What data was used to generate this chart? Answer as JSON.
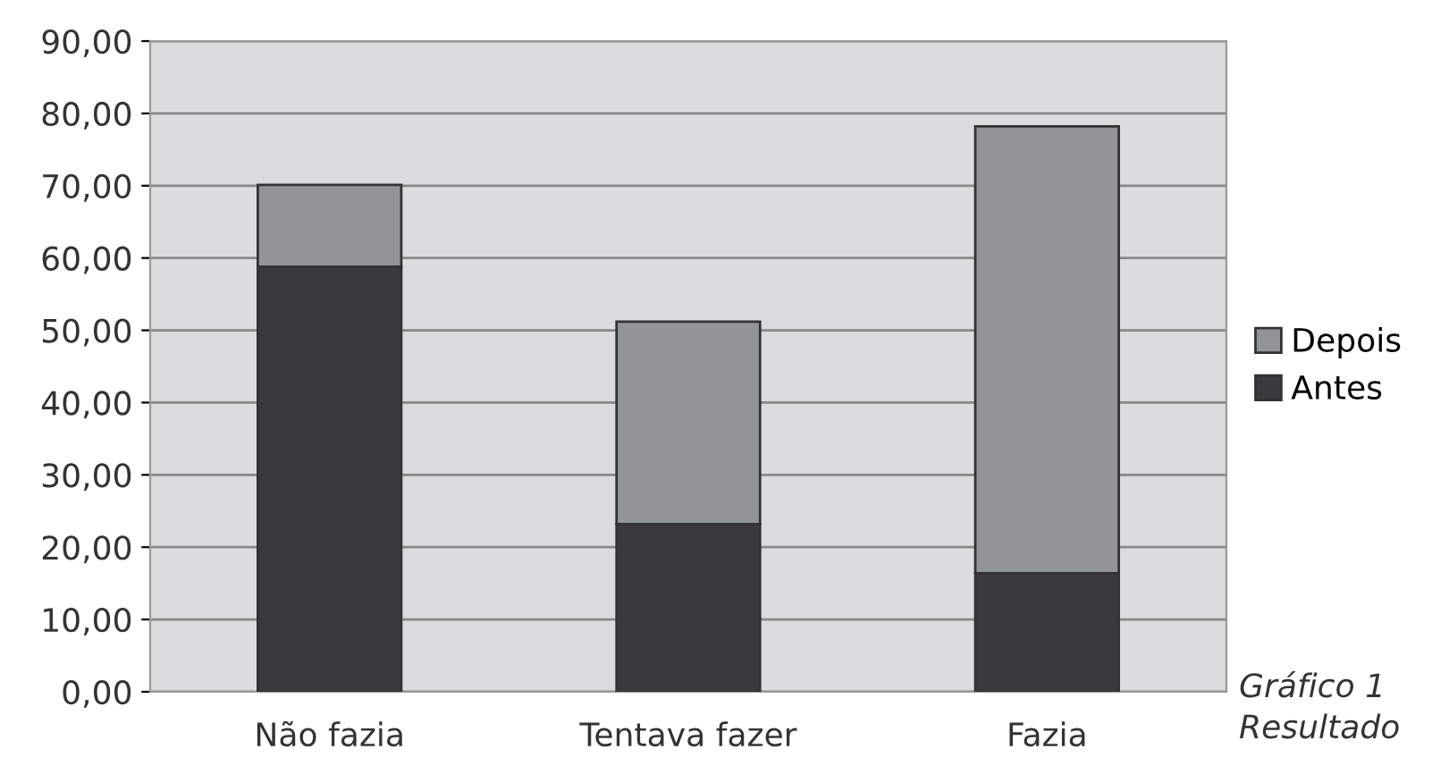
{
  "chart_data": {
    "type": "bar",
    "stacked": true,
    "categories": [
      "Não fazia",
      "Tentava fazer",
      "Fazia"
    ],
    "series": [
      {
        "name": "Antes",
        "color": "#3a393d",
        "values": [
          58.8,
          23.2,
          16.4
        ]
      },
      {
        "name": "Depois",
        "color": "#929598",
        "values": [
          11.3,
          28.0,
          61.8
        ]
      }
    ],
    "ylim": [
      0,
      90
    ],
    "yticks": [
      {
        "value": 0,
        "label": "0,00"
      },
      {
        "value": 10,
        "label": "10,00"
      },
      {
        "value": 20,
        "label": "20,00"
      },
      {
        "value": 30,
        "label": "30,00"
      },
      {
        "value": 40,
        "label": "40,00"
      },
      {
        "value": 50,
        "label": "50,00"
      },
      {
        "value": 60,
        "label": "60,00"
      },
      {
        "value": 70,
        "label": "70,00"
      },
      {
        "value": 80,
        "label": "80,00"
      },
      {
        "value": 90,
        "label": "90,00"
      }
    ],
    "grid": "y",
    "legend": "right",
    "annotations": [
      "Gráfico 1",
      "Resultado"
    ]
  }
}
